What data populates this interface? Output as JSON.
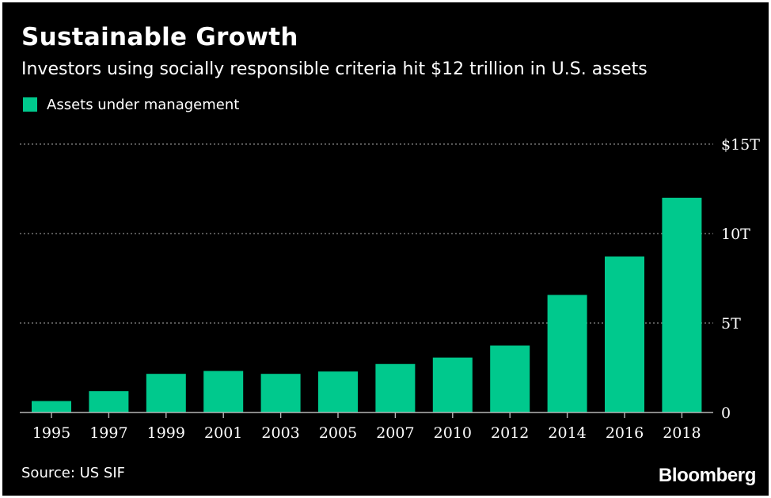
{
  "title": "Sustainable Growth",
  "subtitle": "Investors using socially responsible criteria hit $12 trillion in U.S. assets",
  "source": "Source: US SIF",
  "brand": "Bloomberg",
  "colors": {
    "background": "#000000",
    "bar": "#00c98d",
    "text": "#ffffff",
    "grid": "#8a8a8a",
    "axis": "#b5b5b5"
  },
  "chart_data": {
    "type": "bar",
    "categories": [
      "1995",
      "1997",
      "1999",
      "2001",
      "2003",
      "2005",
      "2007",
      "2010",
      "2012",
      "2014",
      "2016",
      "2018"
    ],
    "series": [
      {
        "name": "Assets under management",
        "values": [
          0.64,
          1.19,
          2.16,
          2.32,
          2.16,
          2.29,
          2.71,
          3.07,
          3.74,
          6.57,
          8.72,
          12.0
        ]
      }
    ],
    "ylim": [
      0,
      15
    ],
    "yticks": [
      0,
      5,
      10,
      15
    ],
    "ytick_labels": [
      "0",
      "5T",
      "10T",
      "$15T"
    ],
    "y_axis_position": "right",
    "grid": true,
    "legend": "top-left",
    "xlabel": "",
    "ylabel": ""
  }
}
